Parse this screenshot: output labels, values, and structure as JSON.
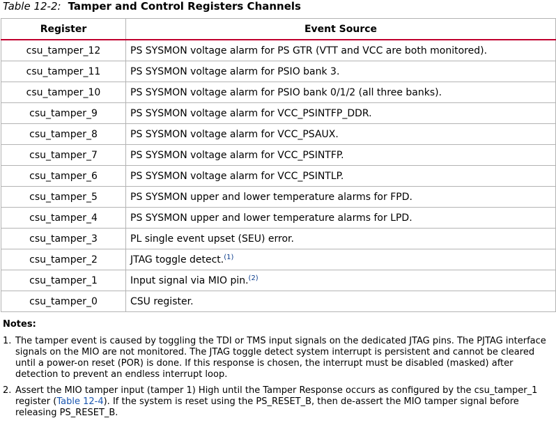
{
  "caption": {
    "number": "Table 12-2:",
    "title": "Tamper and Control Registers Channels"
  },
  "table": {
    "headers": [
      "Register",
      "Event Source"
    ],
    "rows": [
      {
        "register": "csu_tamper_12",
        "source": "PS SYSMON voltage alarm for PS GTR (VTT and VCC are both monitored).",
        "sup": ""
      },
      {
        "register": "csu_tamper_11",
        "source": "PS SYSMON voltage alarm for PSIO bank 3.",
        "sup": ""
      },
      {
        "register": "csu_tamper_10",
        "source": "PS SYSMON voltage alarm for PSIO bank 0/1/2 (all three banks).",
        "sup": ""
      },
      {
        "register": "csu_tamper_9",
        "source": "PS SYSMON voltage alarm for VCC_PSINTFP_DDR.",
        "sup": ""
      },
      {
        "register": "csu_tamper_8",
        "source": "PS SYSMON voltage alarm for VCC_PSAUX.",
        "sup": ""
      },
      {
        "register": "csu_tamper_7",
        "source": "PS SYSMON voltage alarm for VCC_PSINTFP.",
        "sup": ""
      },
      {
        "register": "csu_tamper_6",
        "source": "PS SYSMON voltage alarm for VCC_PSINTLP.",
        "sup": ""
      },
      {
        "register": "csu_tamper_5",
        "source": "PS SYSMON upper and lower temperature alarms for FPD.",
        "sup": ""
      },
      {
        "register": "csu_tamper_4",
        "source": "PS SYSMON upper and lower temperature alarms for LPD.",
        "sup": ""
      },
      {
        "register": "csu_tamper_3",
        "source": "PL single event upset (SEU) error.",
        "sup": ""
      },
      {
        "register": "csu_tamper_2",
        "source": "JTAG toggle detect.",
        "sup": "(1)"
      },
      {
        "register": "csu_tamper_1",
        "source": "Input signal via MIO pin.",
        "sup": "(2)"
      },
      {
        "register": "csu_tamper_0",
        "source": "CSU register.",
        "sup": ""
      }
    ]
  },
  "notes": {
    "title": "Notes:",
    "items": [
      {
        "num": "1.",
        "text": "The tamper event is caused by toggling the TDI or TMS input signals on the dedicated JTAG pins. The PJTAG interface signals on the MIO are not monitored. The JTAG toggle detect system interrupt is persistent and cannot be cleared until a power-on reset (POR) is done. If this response is chosen, the interrupt must be disabled (masked) after detection to prevent an endless interrupt loop."
      },
      {
        "num": "2.",
        "text_before": "Assert the MIO tamper input (tamper 1) High until the Tamper Response occurs as configured by the csu_tamper_1 register (",
        "link": "Table 12-4",
        "text_after": "). If the system is reset using the PS_RESET_B, then de-assert the MIO tamper signal before releasing PS_RESET_B."
      }
    ]
  },
  "colors": {
    "header_rule": "#c0002e",
    "grid": "#b3b3b3",
    "link": "#1a56b0"
  }
}
